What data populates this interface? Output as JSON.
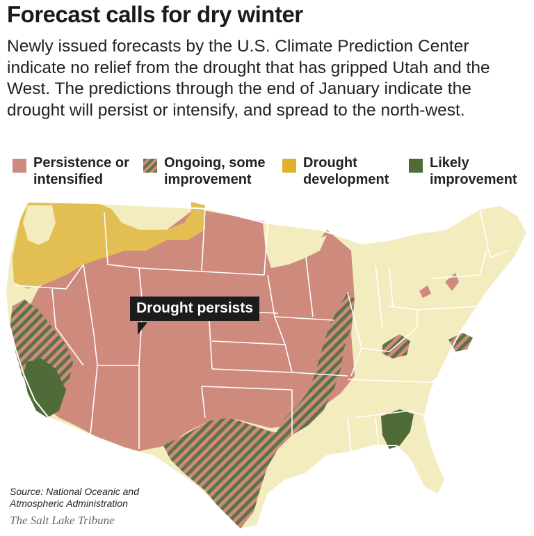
{
  "headline": "Forecast calls for dry winter",
  "deck": "Newly issued forecasts by the U.S. Climate Prediction Center indicate no relief from the drought that has gripped Utah and the West. The predictions through the end of January indicate the drought will persist or intensify, and spread to the north-west.",
  "legend": {
    "persistence": {
      "label": "Persistence or intensified",
      "color": "#cf8a7e"
    },
    "ongoing": {
      "label": "Ongoing, some improvement",
      "color": "#5b7346"
    },
    "development": {
      "label": "Drought development",
      "color": "#e3be52"
    },
    "improvement": {
      "label": "Likely improvement",
      "color": "#4e6b38"
    }
  },
  "base_color": "#f3ecbe",
  "callout": "Drought persists",
  "source": "Source: National Oceanic and Atmospheric Administration",
  "credit": "The Salt Lake Tribune"
}
